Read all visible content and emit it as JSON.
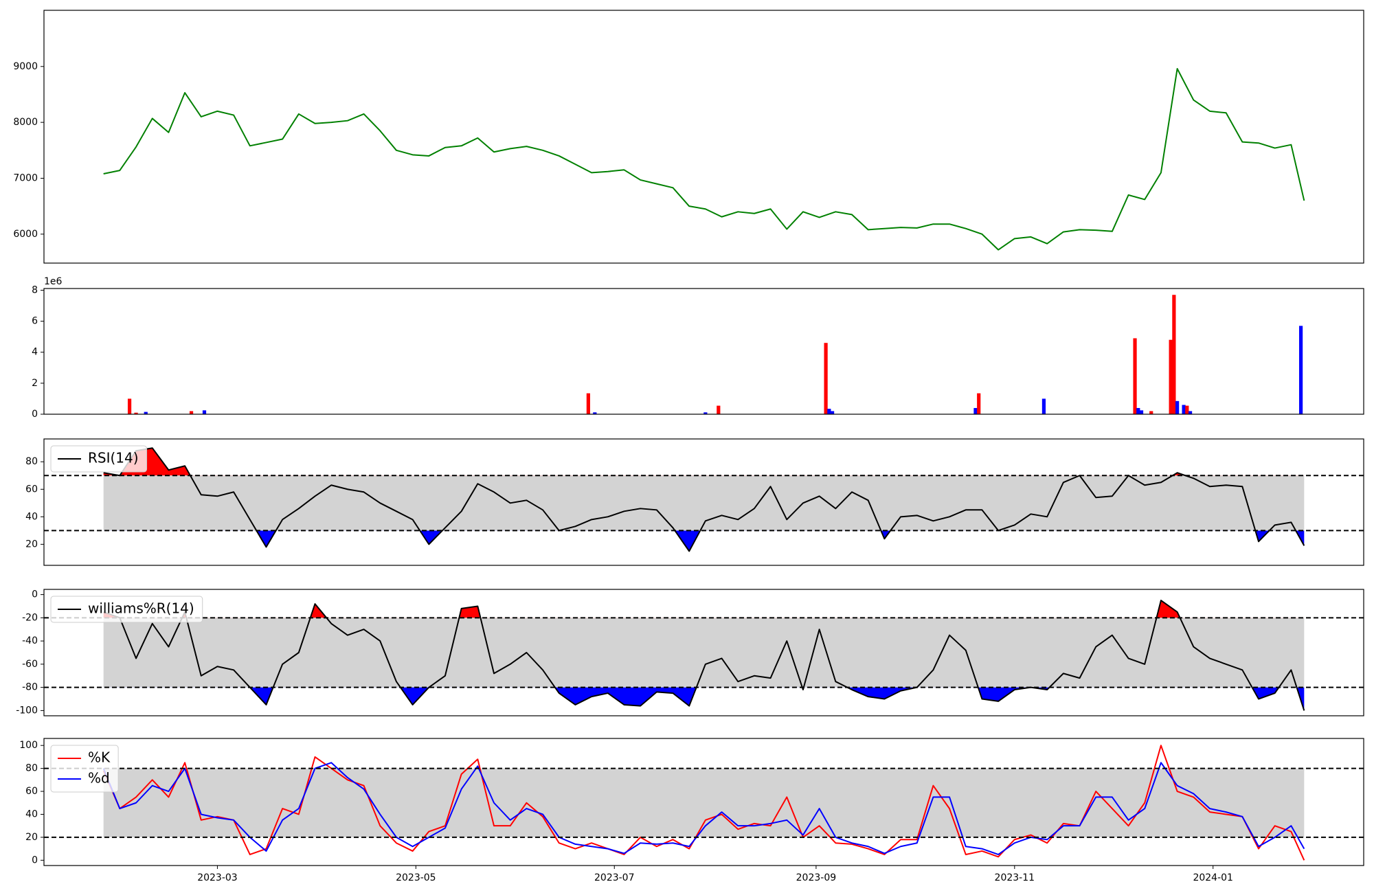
{
  "chart_data": [
    {
      "type": "line",
      "color": "green",
      "x": [
        19382,
        19387,
        19392,
        19397,
        19402,
        19407,
        19412,
        19417,
        19422,
        19427,
        19432,
        19437,
        19442,
        19447,
        19452,
        19457,
        19462,
        19467,
        19472,
        19477,
        19482,
        19487,
        19492,
        19497,
        19502,
        19507,
        19512,
        19517,
        19522,
        19527,
        19532,
        19537,
        19542,
        19547,
        19552,
        19557,
        19562,
        19567,
        19572,
        19577,
        19582,
        19587,
        19592,
        19597,
        19602,
        19607,
        19612,
        19617,
        19622,
        19627,
        19632,
        19637,
        19642,
        19647,
        19652,
        19657,
        19662,
        19667,
        19672,
        19677,
        19682,
        19687,
        19692,
        19697,
        19702,
        19707,
        19712,
        19717,
        19722,
        19727,
        19732,
        19737,
        19742,
        19747,
        19751
      ],
      "values": [
        7080,
        7140,
        7560,
        8070,
        7820,
        8530,
        8100,
        8200,
        8130,
        7580,
        7640,
        7700,
        8150,
        7980,
        8000,
        8030,
        8150,
        7850,
        7500,
        7420,
        7400,
        7550,
        7580,
        7720,
        7470,
        7530,
        7570,
        7500,
        7400,
        7250,
        7100,
        7120,
        7150,
        6970,
        6900,
        6830,
        6500,
        6450,
        6310,
        6400,
        6370,
        6450,
        6090,
        6400,
        6300,
        6400,
        6350,
        6080,
        6100,
        6120,
        6110,
        6180,
        6180,
        6100,
        6000,
        5720,
        5920,
        5950,
        5830,
        6040,
        6080,
        6070,
        6050,
        6700,
        6620,
        7100,
        8960,
        8400,
        8200,
        8170,
        7650,
        7630,
        7540,
        7600,
        6600
      ],
      "xlim": [
        19363.7,
        19769.3
      ],
      "ylim": [
        5482,
        10005
      ],
      "yticks": [
        6000,
        7000,
        8000,
        9000
      ]
    },
    {
      "type": "bar",
      "offset_label": "1e6",
      "x": [
        19390,
        19392,
        19395,
        19409,
        19413,
        19531,
        19533,
        19567,
        19571,
        19604,
        19605,
        19606,
        19650,
        19651,
        19671,
        19699,
        19700,
        19701,
        19704,
        19710,
        19711,
        19712,
        19714,
        19715,
        19716,
        19750
      ],
      "values": [
        1000000,
        100000,
        150000,
        200000,
        250000,
        1350000,
        120000,
        120000,
        550000,
        4600000,
        350000,
        200000,
        400000,
        1350000,
        1000000,
        4900000,
        400000,
        250000,
        200000,
        4800000,
        7700000,
        850000,
        600000,
        550000,
        200000,
        5700000
      ],
      "colors": [
        "red",
        "red",
        "blue",
        "red",
        "blue",
        "red",
        "blue",
        "blue",
        "red",
        "red",
        "blue",
        "blue",
        "blue",
        "red",
        "blue",
        "red",
        "blue",
        "blue",
        "red",
        "red",
        "red",
        "blue",
        "blue",
        "red",
        "blue",
        "blue"
      ],
      "xlim": [
        19363.7,
        19769.3
      ],
      "ylim": [
        0,
        8110000
      ],
      "yticks": [
        {
          "value": 0,
          "label": "0"
        },
        {
          "value": 2000000,
          "label": "2"
        },
        {
          "value": 4000000,
          "label": "4"
        },
        {
          "value": 6000000,
          "label": "6"
        },
        {
          "value": 8000000,
          "label": "8"
        }
      ]
    },
    {
      "type": "line",
      "legend": "upper left",
      "hlines": [
        30,
        70
      ],
      "band_color": "lightgray",
      "fill_above_color": "red",
      "fill_below_color": "blue",
      "x": [
        19382,
        19387,
        19392,
        19397,
        19402,
        19407,
        19412,
        19417,
        19422,
        19427,
        19432,
        19437,
        19442,
        19447,
        19452,
        19457,
        19462,
        19467,
        19472,
        19477,
        19482,
        19487,
        19492,
        19497,
        19502,
        19507,
        19512,
        19517,
        19522,
        19527,
        19532,
        19537,
        19542,
        19547,
        19552,
        19557,
        19562,
        19567,
        19572,
        19577,
        19582,
        19587,
        19592,
        19597,
        19602,
        19607,
        19612,
        19617,
        19622,
        19627,
        19632,
        19637,
        19642,
        19647,
        19652,
        19657,
        19662,
        19667,
        19672,
        19677,
        19682,
        19687,
        19692,
        19697,
        19702,
        19707,
        19712,
        19717,
        19722,
        19727,
        19732,
        19737,
        19742,
        19747,
        19751
      ],
      "series": [
        {
          "name": "RSI(14)",
          "color": "black",
          "values": [
            72,
            70,
            88,
            90,
            74,
            77,
            56,
            55,
            58,
            38,
            18,
            38,
            46,
            55,
            63,
            60,
            58,
            50,
            44,
            38,
            20,
            32,
            44,
            64,
            58,
            50,
            52,
            45,
            30,
            33,
            38,
            40,
            44,
            46,
            45,
            32,
            15,
            37,
            41,
            38,
            46,
            62,
            38,
            50,
            55,
            46,
            58,
            52,
            24,
            40,
            41,
            37,
            40,
            45,
            45,
            30,
            34,
            42,
            40,
            65,
            70,
            54,
            55,
            70,
            63,
            65,
            72,
            68,
            62,
            63,
            62,
            22,
            34,
            36,
            19
          ]
        }
      ],
      "xlim": [
        19363.7,
        19769.3
      ],
      "ylim": [
        4.7,
        96.6
      ],
      "yticks": [
        20,
        40,
        60,
        80
      ]
    },
    {
      "type": "line",
      "legend": "upper left",
      "hlines": [
        -80,
        -20
      ],
      "band_color": "lightgray",
      "fill_above_color": "red",
      "fill_below_color": "blue",
      "x": [
        19382,
        19387,
        19392,
        19397,
        19402,
        19407,
        19412,
        19417,
        19422,
        19427,
        19432,
        19437,
        19442,
        19447,
        19452,
        19457,
        19462,
        19467,
        19472,
        19477,
        19482,
        19487,
        19492,
        19497,
        19502,
        19507,
        19512,
        19517,
        19522,
        19527,
        19532,
        19537,
        19542,
        19547,
        19552,
        19557,
        19562,
        19567,
        19572,
        19577,
        19582,
        19587,
        19592,
        19597,
        19602,
        19607,
        19612,
        19617,
        19622,
        19627,
        19632,
        19637,
        19642,
        19647,
        19652,
        19657,
        19662,
        19667,
        19672,
        19677,
        19682,
        19687,
        19692,
        19697,
        19702,
        19707,
        19712,
        19717,
        19722,
        19727,
        19732,
        19737,
        19742,
        19747,
        19751
      ],
      "series": [
        {
          "name": "williams%R(14)",
          "color": "black",
          "values": [
            -15,
            -20,
            -55,
            -25,
            -45,
            -15,
            -70,
            -62,
            -65,
            -80,
            -95,
            -60,
            -50,
            -8,
            -25,
            -35,
            -30,
            -40,
            -75,
            -95,
            -80,
            -70,
            -12,
            -10,
            -68,
            -60,
            -50,
            -65,
            -85,
            -95,
            -88,
            -85,
            -95,
            -96,
            -84,
            -85,
            -96,
            -60,
            -55,
            -75,
            -70,
            -72,
            -40,
            -82,
            -30,
            -75,
            -82,
            -88,
            -90,
            -83,
            -80,
            -65,
            -35,
            -48,
            -90,
            -92,
            -82,
            -80,
            -82,
            -68,
            -72,
            -45,
            -35,
            -55,
            -60,
            -5,
            -15,
            -45,
            -55,
            -60,
            -65,
            -90,
            -85,
            -65,
            -100
          ]
        }
      ],
      "xlim": [
        19363.7,
        19769.3
      ],
      "ylim": [
        -104.5,
        4.5
      ],
      "yticks": [
        -100,
        -80,
        -60,
        -40,
        -20,
        0
      ]
    },
    {
      "type": "line",
      "legend": "upper left",
      "hlines": [
        20,
        80
      ],
      "band_color": "lightgray",
      "x": [
        19382,
        19387,
        19392,
        19397,
        19402,
        19407,
        19412,
        19417,
        19422,
        19427,
        19432,
        19437,
        19442,
        19447,
        19452,
        19457,
        19462,
        19467,
        19472,
        19477,
        19482,
        19487,
        19492,
        19497,
        19502,
        19507,
        19512,
        19517,
        19522,
        19527,
        19532,
        19537,
        19542,
        19547,
        19552,
        19557,
        19562,
        19567,
        19572,
        19577,
        19582,
        19587,
        19592,
        19597,
        19602,
        19607,
        19612,
        19617,
        19622,
        19627,
        19632,
        19637,
        19642,
        19647,
        19652,
        19657,
        19662,
        19667,
        19672,
        19677,
        19682,
        19687,
        19692,
        19697,
        19702,
        19707,
        19712,
        19717,
        19722,
        19727,
        19732,
        19737,
        19742,
        19747,
        19751
      ],
      "series": [
        {
          "name": "%K",
          "color": "red",
          "values": [
            78,
            45,
            55,
            70,
            55,
            85,
            35,
            38,
            35,
            5,
            10,
            45,
            40,
            90,
            80,
            70,
            65,
            30,
            15,
            8,
            25,
            30,
            75,
            88,
            30,
            30,
            50,
            38,
            15,
            10,
            15,
            10,
            5,
            20,
            12,
            18,
            10,
            35,
            40,
            27,
            32,
            30,
            55,
            20,
            30,
            15,
            14,
            10,
            5,
            18,
            18,
            65,
            45,
            5,
            8,
            3,
            18,
            22,
            15,
            32,
            30,
            60,
            45,
            30,
            50,
            100,
            60,
            55,
            42,
            40,
            38,
            10,
            30,
            25,
            0
          ]
        },
        {
          "name": "%d",
          "color": "blue",
          "values": [
            80,
            45,
            50,
            65,
            60,
            80,
            40,
            37,
            35,
            20,
            8,
            35,
            45,
            80,
            85,
            72,
            62,
            40,
            20,
            12,
            20,
            28,
            62,
            82,
            50,
            35,
            45,
            40,
            20,
            14,
            12,
            10,
            6,
            15,
            14,
            15,
            12,
            30,
            42,
            30,
            30,
            32,
            35,
            22,
            45,
            20,
            15,
            12,
            6,
            12,
            15,
            55,
            55,
            12,
            10,
            5,
            15,
            20,
            18,
            30,
            30,
            55,
            55,
            35,
            45,
            85,
            65,
            58,
            45,
            42,
            38,
            12,
            20,
            30,
            10
          ]
        }
      ],
      "xlim": [
        19363.7,
        19769.3
      ],
      "ylim": [
        -4.6,
        106.1
      ],
      "yticks": [
        0,
        20,
        40,
        60,
        80,
        100
      ],
      "xticks": [
        {
          "value": 19417,
          "label": "2023-03"
        },
        {
          "value": 19478,
          "label": "2023-05"
        },
        {
          "value": 19539,
          "label": "2023-07"
        },
        {
          "value": 19601,
          "label": "2023-09"
        },
        {
          "value": 19662,
          "label": "2023-11"
        },
        {
          "value": 19723,
          "label": "2024-01"
        }
      ]
    }
  ]
}
